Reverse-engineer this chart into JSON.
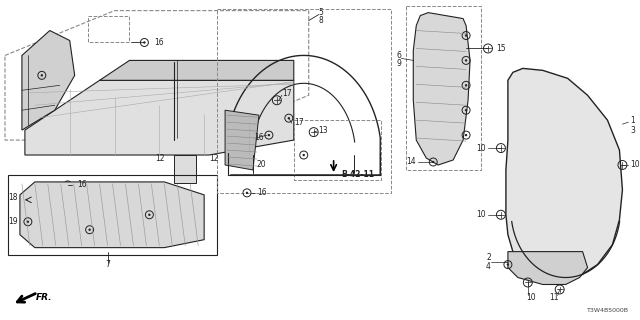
{
  "bg_color": "#ffffff",
  "line_color": "#222222",
  "diagram_code": "T3W4B5000B",
  "bold_label": "B-42-11",
  "arrow_label": "FR."
}
